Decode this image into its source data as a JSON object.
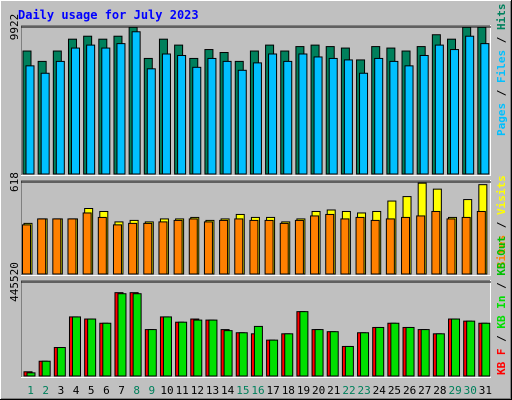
{
  "colors": {
    "background": "#c0c0c0",
    "title": "#0000ff",
    "hits": "#00805c",
    "files": "#00c0ff",
    "pages": "#00c0ff",
    "sites": "#ff8000",
    "visits": "#ffff00",
    "kb_in": "#00e000",
    "kb_out": "#00c000",
    "kb_f": "#ff0000",
    "weekday_label": "#000000",
    "weekend_label": "#00805c"
  },
  "chart_data": [
    {
      "type": "bar",
      "title": "Daily usage for July 2023",
      "x": [
        1,
        2,
        3,
        4,
        5,
        6,
        7,
        8,
        9,
        10,
        11,
        12,
        13,
        14,
        15,
        16,
        17,
        18,
        19,
        20,
        21,
        22,
        23,
        24,
        25,
        26,
        27,
        28,
        29,
        30,
        31
      ],
      "weekend_days": [
        1,
        2,
        8,
        9,
        15,
        16,
        22,
        23,
        29,
        30
      ],
      "ymax_label": "9922",
      "ylim": [
        0,
        9922
      ],
      "series": [
        {
          "name": "Hits",
          "values": [
            8300,
            7600,
            8300,
            9100,
            9300,
            9100,
            9300,
            9900,
            7800,
            9100,
            8700,
            7800,
            8400,
            8200,
            7600,
            8300,
            8700,
            8300,
            8600,
            8700,
            8600,
            8500,
            7700,
            8600,
            8500,
            8300,
            8600,
            9400,
            9100,
            9900,
            9900
          ]
        },
        {
          "name": "Files",
          "values": [
            7300,
            6800,
            7600,
            8500,
            8700,
            8500,
            8800,
            9600,
            7100,
            8100,
            8000,
            7200,
            7800,
            7600,
            7000,
            7500,
            8100,
            7600,
            8100,
            7900,
            7800,
            7700,
            6800,
            7800,
            7600,
            7300,
            8000,
            8700,
            8400,
            9300,
            8800
          ]
        },
        {
          "name": "Pages",
          "values": [
            7300,
            6800,
            7600,
            8500,
            8700,
            8500,
            8800,
            9600,
            7100,
            8100,
            8000,
            7200,
            7800,
            7600,
            7000,
            7500,
            8100,
            7600,
            8100,
            7900,
            7800,
            7700,
            6800,
            7800,
            7600,
            7300,
            8000,
            8700,
            8400,
            9300,
            8800
          ]
        }
      ]
    },
    {
      "type": "bar",
      "ymax_label": "618",
      "ylim": [
        0,
        618
      ],
      "series": [
        {
          "name": "Visits",
          "values": [
            340,
            370,
            370,
            370,
            440,
            420,
            350,
            360,
            350,
            370,
            370,
            380,
            360,
            370,
            400,
            380,
            380,
            350,
            370,
            420,
            430,
            420,
            410,
            420,
            490,
            520,
            610,
            570,
            380,
            500,
            600
          ]
        },
        {
          "name": "Sites",
          "values": [
            330,
            370,
            370,
            370,
            410,
            380,
            330,
            340,
            340,
            350,
            360,
            370,
            350,
            360,
            370,
            360,
            360,
            340,
            360,
            390,
            400,
            370,
            380,
            360,
            370,
            380,
            390,
            420,
            370,
            380,
            420
          ]
        }
      ]
    },
    {
      "type": "bar",
      "ymax_label": "445520",
      "ylim": [
        0,
        445520
      ],
      "series": [
        {
          "name": "KB F",
          "values": [
            20000,
            70000,
            135000,
            280000,
            270000,
            250000,
            395000,
            395000,
            220000,
            280000,
            255000,
            270000,
            265000,
            220000,
            205000,
            200000,
            170000,
            200000,
            305000,
            220000,
            210000,
            140000,
            205000,
            230000,
            250000,
            230000,
            220000,
            200000,
            270000,
            260000,
            250000
          ]
        },
        {
          "name": "KB In",
          "values": [
            15000,
            70000,
            135000,
            280000,
            270000,
            250000,
            390000,
            390000,
            220000,
            280000,
            255000,
            265000,
            265000,
            215000,
            205000,
            235000,
            170000,
            200000,
            305000,
            220000,
            210000,
            140000,
            205000,
            230000,
            250000,
            230000,
            220000,
            200000,
            270000,
            260000,
            250000
          ]
        },
        {
          "name": "KB Out",
          "values": [
            15000,
            70000,
            135000,
            280000,
            270000,
            250000,
            390000,
            390000,
            220000,
            280000,
            255000,
            265000,
            265000,
            215000,
            205000,
            235000,
            170000,
            200000,
            305000,
            220000,
            210000,
            140000,
            205000,
            230000,
            250000,
            230000,
            220000,
            200000,
            270000,
            260000,
            250000
          ]
        }
      ]
    }
  ]
}
